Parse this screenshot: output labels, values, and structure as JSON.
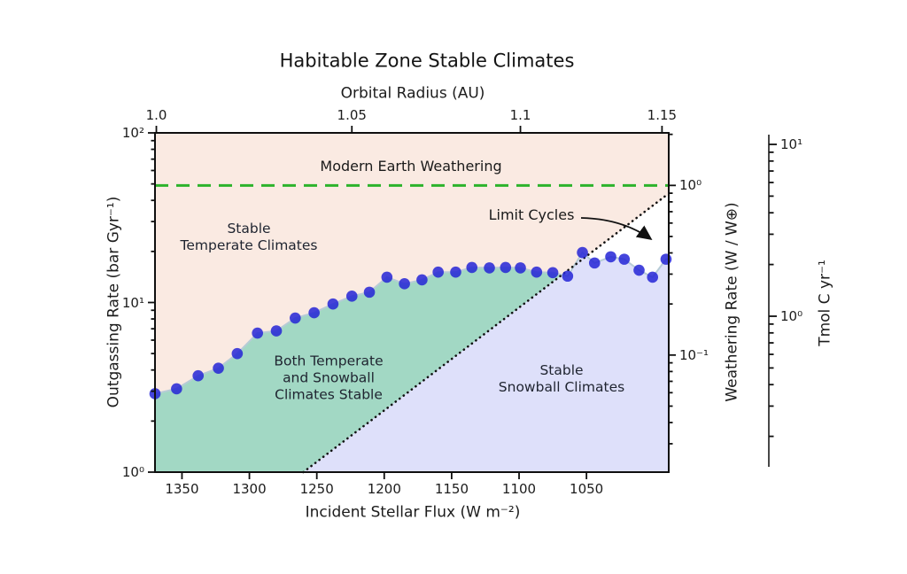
{
  "figure": {
    "title": "Habitable Zone Stable Climates",
    "top_axis": {
      "label": "Orbital Radius (AU)",
      "ticks": [
        {
          "label": "1.0",
          "flux": 1369
        },
        {
          "label": "1.05",
          "flux": 1224
        },
        {
          "label": "1.1",
          "flux": 1099
        },
        {
          "label": "1.15",
          "flux": 994
        }
      ]
    },
    "bottom_axis": {
      "label": "Incident Stellar Flux (W m⁻²)",
      "ticks": [
        "1350",
        "1300",
        "1250",
        "1200",
        "1150",
        "1100",
        "1050"
      ]
    },
    "left_axis": {
      "label": "Outgassing Rate (bar Gyr⁻¹)",
      "ticks": [
        "10²",
        "10¹",
        "10⁰"
      ],
      "tick_values": [
        100,
        10,
        1
      ]
    },
    "right_axis": {
      "label": "Weathering Rate (W / W⊕)",
      "ticks": [
        "10⁰",
        "10⁻¹"
      ],
      "tick_values": [
        1,
        0.1
      ]
    },
    "far_right_axis": {
      "label": "Tmol C yr⁻¹",
      "ticks": [
        "10¹",
        "10⁰"
      ],
      "tick_values": [
        10,
        1
      ]
    },
    "annotations": {
      "weathering_line": "Modern Earth Weathering",
      "limit_cycles": "Limit Cycles",
      "region_temperate_1": "Stable",
      "region_temperate_2": "Temperate Climates",
      "region_both_1": "Both Temperate",
      "region_both_2": "and Snowball",
      "region_both_3": "Climates Stable",
      "region_snowball_1": "Stable",
      "region_snowball_2": "Snowball Climates"
    }
  },
  "chart_data": {
    "type": "scatter",
    "title": "Habitable Zone Stable Climates",
    "xlabel": "Incident Stellar Flux (W m⁻²)",
    "xlabel_top": "Orbital Radius (AU)",
    "ylabel_left": "Outgassing Rate (bar Gyr⁻¹)",
    "ylabel_right": "Weathering Rate (W / W⊕)",
    "ylabel_far_right": "Tmol C yr⁻¹",
    "x_axis_reversed": true,
    "x_range_flux": [
      1370,
      989
    ],
    "y_range_outgassing": [
      1,
      100
    ],
    "y_scale": "log",
    "weathering_to_outgassing": 49,
    "grid": false,
    "series": [
      {
        "name": "climate-state-boundary-points",
        "type": "scatter",
        "color": "#2424d6",
        "line_color": "#b7ccd6",
        "points": [
          [
            1370,
            2.9
          ],
          [
            1354,
            3.1
          ],
          [
            1338,
            3.7
          ],
          [
            1323,
            4.1
          ],
          [
            1309,
            5.0
          ],
          [
            1294,
            6.6
          ],
          [
            1280,
            6.8
          ],
          [
            1266,
            8.1
          ],
          [
            1252,
            8.7
          ],
          [
            1238,
            9.8
          ],
          [
            1224,
            10.9
          ],
          [
            1211,
            11.5
          ],
          [
            1198,
            14.1
          ],
          [
            1185,
            12.9
          ],
          [
            1172,
            13.6
          ],
          [
            1160,
            15.1
          ],
          [
            1147,
            15.1
          ],
          [
            1135,
            16.1
          ],
          [
            1122,
            16.0
          ],
          [
            1110,
            16.1
          ],
          [
            1099,
            16.0
          ],
          [
            1087,
            15.1
          ],
          [
            1075,
            15.0
          ],
          [
            1064,
            14.3
          ],
          [
            1053,
            19.7
          ],
          [
            1044,
            17.1
          ],
          [
            1032,
            18.6
          ],
          [
            1022,
            18.0
          ],
          [
            1011,
            15.5
          ],
          [
            1001,
            14.1
          ],
          [
            991,
            18.0
          ]
        ]
      },
      {
        "name": "snowball-onset-boundary",
        "type": "line",
        "style": "dotted",
        "color": "#111111",
        "points": [
          [
            1260,
            1.0
          ],
          [
            994,
            41.0
          ]
        ]
      },
      {
        "name": "modern-earth-weathering-line",
        "type": "hline",
        "style": "dashed",
        "color": "#2cb32c",
        "outgassing_value": 49,
        "weathering_value": 1.0
      }
    ],
    "regions": [
      {
        "name": "stable-temperate-climates",
        "label": "Stable Temperate Climates",
        "color": "#faeae2"
      },
      {
        "name": "both-temperate-and-snowball-stable",
        "label": "Both Temperate and Snowball Climates Stable",
        "color": "#a2d8c4"
      },
      {
        "name": "stable-snowball-climates",
        "label": "Stable Snowball Climates",
        "color": "#dee0fa"
      },
      {
        "name": "limit-cycles",
        "label": "Limit Cycles",
        "color": "#ffffff"
      }
    ]
  }
}
